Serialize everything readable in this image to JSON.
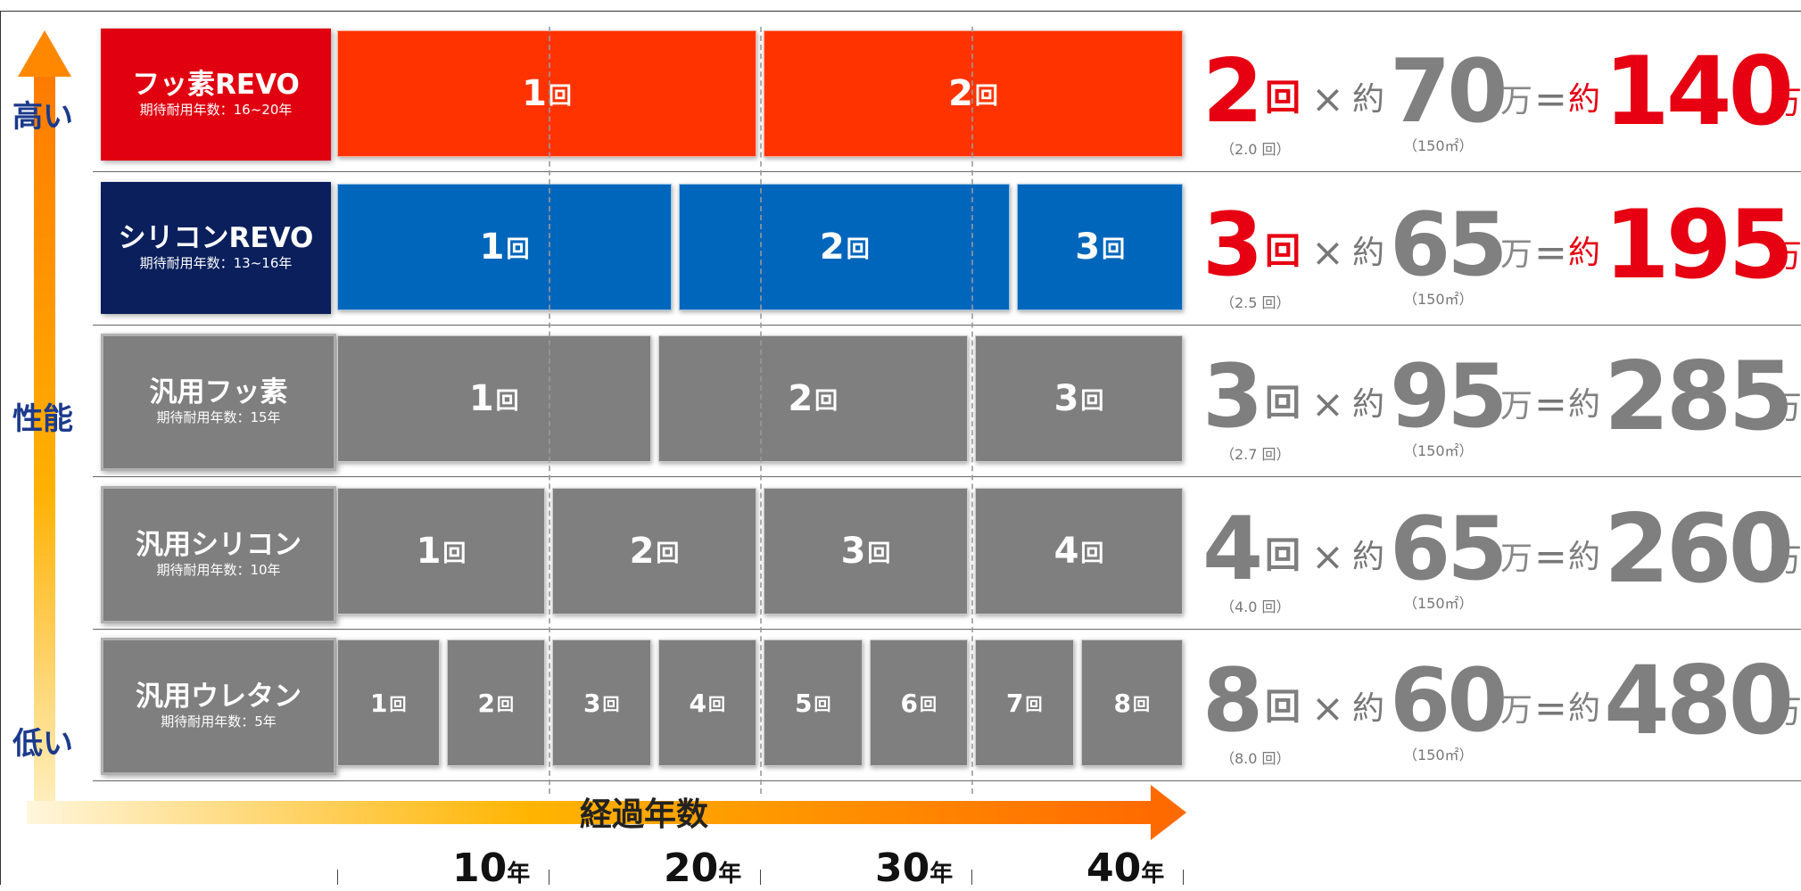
{
  "y_axis": {
    "high": "高い",
    "title": "性能",
    "low": "低い"
  },
  "x_axis": {
    "title": "経過年数",
    "ticks": [
      {
        "num": "10",
        "unit": "年"
      },
      {
        "num": "20",
        "unit": "年"
      },
      {
        "num": "30",
        "unit": "年"
      },
      {
        "num": "40",
        "unit": "年"
      }
    ]
  },
  "colors": {
    "fluorine_revo": "#ff3300",
    "silicone_revo": "#0066bb",
    "generic": "#7f7f7f",
    "accent_red": "#e60012"
  },
  "rows": [
    {
      "name": "フッ素REVO",
      "sub": "期待耐用年数：16~20年",
      "box_color": "#e00010",
      "bar_color": "#ff3300",
      "segments": [
        {
          "num": "1",
          "unit": "回"
        },
        {
          "num": "2",
          "unit": "回"
        }
      ],
      "formula": {
        "count": "2",
        "count_unit": "回",
        "times": "×",
        "about": "約",
        "price": "70",
        "man": "万",
        "eq": "=",
        "about2": "約",
        "total": "140",
        "man2": "万",
        "note": "（2.0 回）",
        "area": "（150㎡）",
        "highlight": true
      }
    },
    {
      "name": "シリコンREVO",
      "sub": "期待耐用年数：13~16年",
      "box_color": "#0a1f5c",
      "bar_color": "#0066bb",
      "segments": [
        {
          "num": "1",
          "unit": "回"
        },
        {
          "num": "2",
          "unit": "回"
        },
        {
          "num": "3",
          "unit": "回"
        }
      ],
      "formula": {
        "count": "3",
        "count_unit": "回",
        "times": "×",
        "about": "約",
        "price": "65",
        "man": "万",
        "eq": "=",
        "about2": "約",
        "total": "195",
        "man2": "万",
        "note": "（2.5 回）",
        "area": "（150㎡）",
        "highlight": true
      }
    },
    {
      "name": "汎用フッ素",
      "sub": "期待耐用年数：15年",
      "box_color": "#7f7f7f",
      "bar_color": "#7f7f7f",
      "segments": [
        {
          "num": "1",
          "unit": "回"
        },
        {
          "num": "2",
          "unit": "回"
        },
        {
          "num": "3",
          "unit": "回"
        }
      ],
      "formula": {
        "count": "3",
        "count_unit": "回",
        "times": "×",
        "about": "約",
        "price": "95",
        "man": "万",
        "eq": "=",
        "about2": "約",
        "total": "285",
        "man2": "万",
        "note": "（2.7 回）",
        "area": "（150㎡）",
        "highlight": false
      }
    },
    {
      "name": "汎用シリコン",
      "sub": "期待耐用年数：10年",
      "box_color": "#7f7f7f",
      "bar_color": "#7f7f7f",
      "segments": [
        {
          "num": "1",
          "unit": "回"
        },
        {
          "num": "2",
          "unit": "回"
        },
        {
          "num": "3",
          "unit": "回"
        },
        {
          "num": "4",
          "unit": "回"
        }
      ],
      "formula": {
        "count": "4",
        "count_unit": "回",
        "times": "×",
        "about": "約",
        "price": "65",
        "man": "万",
        "eq": "=",
        "about2": "約",
        "total": "260",
        "man2": "万",
        "note": "（4.0 回）",
        "area": "（150㎡）",
        "highlight": false
      }
    },
    {
      "name": "汎用ウレタン",
      "sub": "期待耐用年数：5年",
      "box_color": "#7f7f7f",
      "bar_color": "#7f7f7f",
      "segments": [
        {
          "num": "1",
          "unit": "回"
        },
        {
          "num": "2",
          "unit": "回"
        },
        {
          "num": "3",
          "unit": "回"
        },
        {
          "num": "4",
          "unit": "回"
        },
        {
          "num": "5",
          "unit": "回"
        },
        {
          "num": "6",
          "unit": "回"
        },
        {
          "num": "7",
          "unit": "回"
        },
        {
          "num": "8",
          "unit": "回"
        }
      ],
      "formula": {
        "count": "8",
        "count_unit": "回",
        "times": "×",
        "about": "約",
        "price": "60",
        "man": "万",
        "eq": "=",
        "about2": "約",
        "total": "480",
        "man2": "万",
        "note": "（8.0 回）",
        "area": "（150㎡）",
        "highlight": false
      }
    }
  ]
}
